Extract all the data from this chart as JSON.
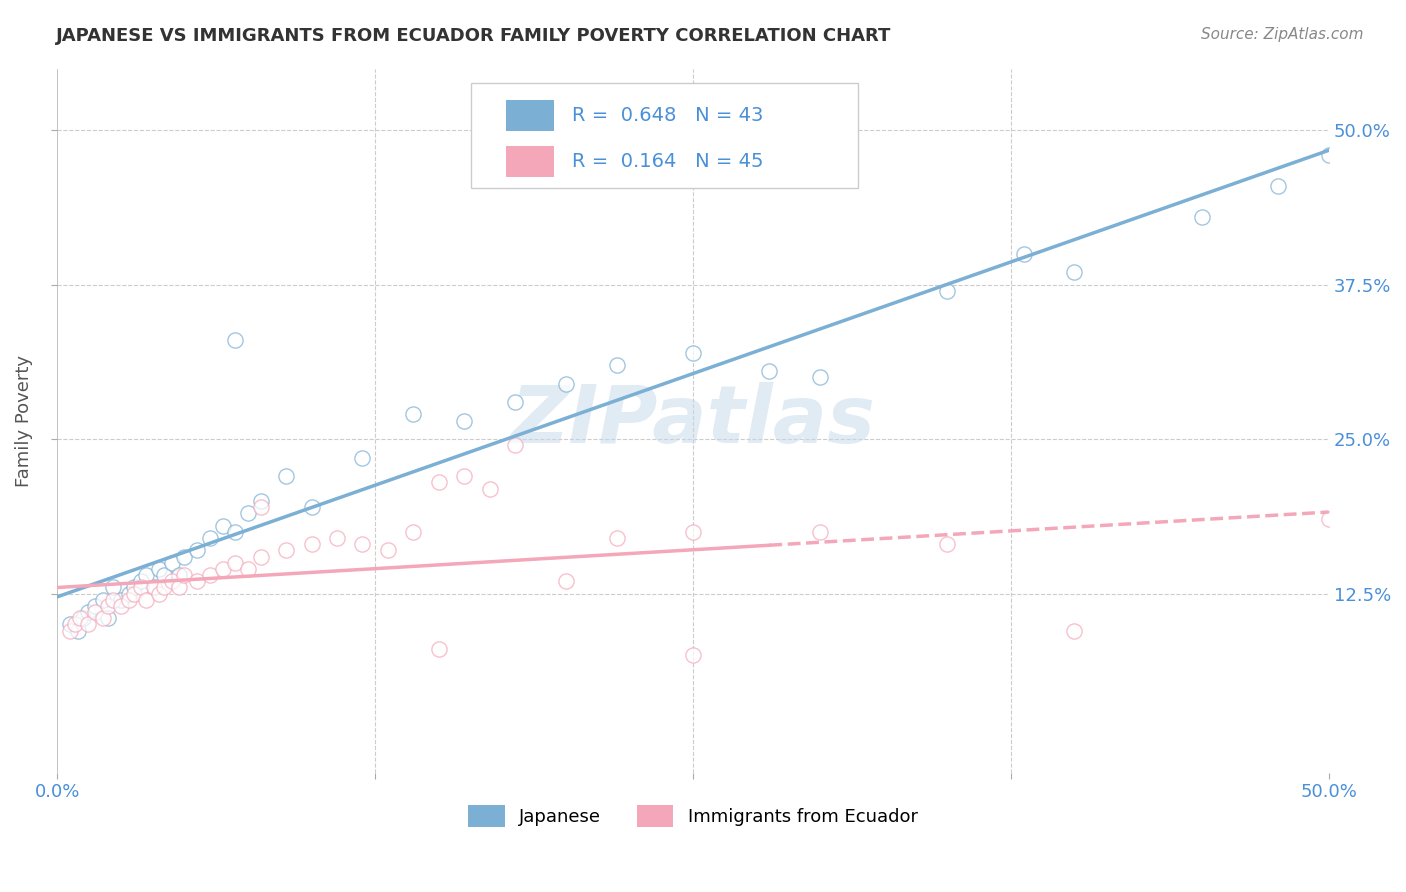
{
  "title": "JAPANESE VS IMMIGRANTS FROM ECUADOR FAMILY POVERTY CORRELATION CHART",
  "source": "Source: ZipAtlas.com",
  "ylabel": "Family Poverty",
  "xlim": [
    0.0,
    0.5
  ],
  "ylim": [
    -0.02,
    0.55
  ],
  "xticks": [
    0.0,
    0.125,
    0.25,
    0.375,
    0.5
  ],
  "xtick_labels": [
    "0.0%",
    "",
    "",
    "",
    "50.0%"
  ],
  "ytick_values": [
    0.125,
    0.25,
    0.375,
    0.5
  ],
  "ytick_labels": [
    "12.5%",
    "25.0%",
    "37.5%",
    "50.0%"
  ],
  "japanese_color": "#7bafd4",
  "ecuador_color": "#f4a7b9",
  "japanese_R": 0.648,
  "japanese_N": 43,
  "ecuador_R": 0.164,
  "ecuador_N": 45,
  "watermark": "ZIPatlas",
  "legend_japanese": "Japanese",
  "legend_ecuador": "Immigrants from Ecuador",
  "japanese_scatter_x": [
    0.005,
    0.008,
    0.01,
    0.012,
    0.015,
    0.018,
    0.02,
    0.022,
    0.025,
    0.028,
    0.03,
    0.033,
    0.035,
    0.038,
    0.04,
    0.042,
    0.045,
    0.048,
    0.05,
    0.055,
    0.06,
    0.065,
    0.07,
    0.075,
    0.08,
    0.09,
    0.1,
    0.12,
    0.14,
    0.16,
    0.18,
    0.2,
    0.22,
    0.25,
    0.28,
    0.3,
    0.35,
    0.38,
    0.4,
    0.45,
    0.48,
    0.5,
    0.07
  ],
  "japanese_scatter_y": [
    0.1,
    0.095,
    0.105,
    0.11,
    0.115,
    0.12,
    0.105,
    0.13,
    0.12,
    0.125,
    0.13,
    0.135,
    0.14,
    0.13,
    0.145,
    0.14,
    0.15,
    0.14,
    0.155,
    0.16,
    0.17,
    0.18,
    0.175,
    0.19,
    0.2,
    0.22,
    0.195,
    0.235,
    0.27,
    0.265,
    0.28,
    0.295,
    0.31,
    0.32,
    0.305,
    0.3,
    0.37,
    0.4,
    0.385,
    0.43,
    0.455,
    0.48,
    0.33
  ],
  "ecuador_scatter_x": [
    0.005,
    0.007,
    0.009,
    0.012,
    0.015,
    0.018,
    0.02,
    0.022,
    0.025,
    0.028,
    0.03,
    0.033,
    0.035,
    0.038,
    0.04,
    0.042,
    0.045,
    0.048,
    0.05,
    0.055,
    0.06,
    0.065,
    0.07,
    0.075,
    0.08,
    0.09,
    0.1,
    0.11,
    0.12,
    0.13,
    0.14,
    0.15,
    0.16,
    0.17,
    0.18,
    0.2,
    0.22,
    0.25,
    0.3,
    0.35,
    0.4,
    0.5,
    0.08,
    0.15,
    0.25
  ],
  "ecuador_scatter_y": [
    0.095,
    0.1,
    0.105,
    0.1,
    0.11,
    0.105,
    0.115,
    0.12,
    0.115,
    0.12,
    0.125,
    0.13,
    0.12,
    0.13,
    0.125,
    0.13,
    0.135,
    0.13,
    0.14,
    0.135,
    0.14,
    0.145,
    0.15,
    0.145,
    0.155,
    0.16,
    0.165,
    0.17,
    0.165,
    0.16,
    0.175,
    0.215,
    0.22,
    0.21,
    0.245,
    0.135,
    0.17,
    0.175,
    0.175,
    0.165,
    0.095,
    0.185,
    0.195,
    0.08,
    0.075
  ]
}
